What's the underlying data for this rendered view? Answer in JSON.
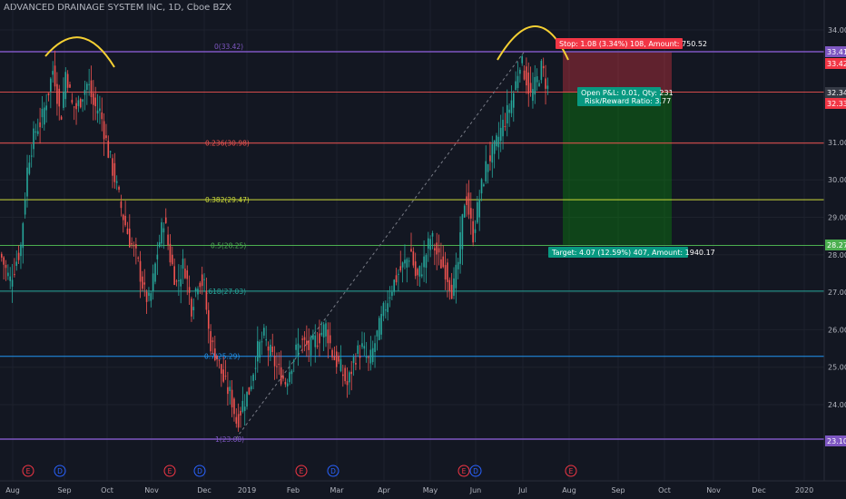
{
  "header": {
    "title": "ADVANCED DRAINAGE SYSTEM INC, 1D, Cboe BZX"
  },
  "colors": {
    "background": "#131722",
    "grid": "#1e222d",
    "text": "#b2b5be",
    "up": "#26a69a",
    "down": "#ef5350",
    "annotation": "#f5d033"
  },
  "chart_data": {
    "type": "candlestick",
    "title": "ADVANCED DRAINAGE SYSTEM INC, 1D, Cboe BZX",
    "ylim": [
      22.6,
      34.3
    ],
    "y_ticks": [
      "24.00",
      "25.00",
      "26.00",
      "27.00",
      "28.00",
      "29.00",
      "30.00",
      "31.00",
      "34.00"
    ],
    "x_ticks": [
      "Aug",
      "Sep",
      "Oct",
      "Nov",
      "Dec",
      "2019",
      "Feb",
      "Mar",
      "Apr",
      "May",
      "Jun",
      "Jul",
      "Aug",
      "Sep",
      "Oct",
      "Nov",
      "Dec",
      "2020"
    ],
    "price_path": [
      [
        0,
        28.0
      ],
      [
        10,
        27.3
      ],
      [
        22,
        28.2
      ],
      [
        30,
        30.5
      ],
      [
        38,
        31.3
      ],
      [
        45,
        31.6
      ],
      [
        52,
        32.3
      ],
      [
        58,
        33.0
      ],
      [
        62,
        32.3
      ],
      [
        66,
        31.6
      ],
      [
        72,
        33.0
      ],
      [
        78,
        32.0
      ],
      [
        84,
        31.9
      ],
      [
        90,
        32.3
      ],
      [
        96,
        32.6
      ],
      [
        102,
        32.0
      ],
      [
        110,
        31.8
      ],
      [
        118,
        30.8
      ],
      [
        126,
        30.0
      ],
      [
        134,
        29.1
      ],
      [
        142,
        28.4
      ],
      [
        150,
        27.9
      ],
      [
        158,
        27.0
      ],
      [
        164,
        26.7
      ],
      [
        172,
        28.0
      ],
      [
        180,
        29.0
      ],
      [
        186,
        28.0
      ],
      [
        194,
        27.2
      ],
      [
        202,
        27.8
      ],
      [
        210,
        26.6
      ],
      [
        218,
        27.4
      ],
      [
        224,
        27.2
      ],
      [
        230,
        25.7
      ],
      [
        238,
        25.3
      ],
      [
        246,
        24.6
      ],
      [
        254,
        24.2
      ],
      [
        260,
        23.5
      ],
      [
        266,
        24.0
      ],
      [
        274,
        24.4
      ],
      [
        282,
        25.4
      ],
      [
        290,
        25.8
      ],
      [
        298,
        25.3
      ],
      [
        306,
        24.9
      ],
      [
        314,
        24.6
      ],
      [
        320,
        25.1
      ],
      [
        330,
        25.7
      ],
      [
        340,
        25.5
      ],
      [
        350,
        25.8
      ],
      [
        358,
        26.1
      ],
      [
        366,
        25.3
      ],
      [
        374,
        25.0
      ],
      [
        382,
        24.5
      ],
      [
        390,
        25.3
      ],
      [
        398,
        25.5
      ],
      [
        406,
        25.1
      ],
      [
        414,
        25.8
      ],
      [
        422,
        26.5
      ],
      [
        430,
        27.1
      ],
      [
        438,
        27.5
      ],
      [
        446,
        27.8
      ],
      [
        452,
        28.1
      ],
      [
        458,
        27.3
      ],
      [
        466,
        27.8
      ],
      [
        474,
        28.5
      ],
      [
        482,
        27.9
      ],
      [
        490,
        27.6
      ],
      [
        498,
        27.0
      ],
      [
        504,
        27.8
      ],
      [
        512,
        29.7
      ],
      [
        520,
        28.5
      ],
      [
        528,
        29.6
      ],
      [
        536,
        30.5
      ],
      [
        544,
        30.8
      ],
      [
        552,
        31.4
      ],
      [
        560,
        31.9
      ],
      [
        566,
        32.4
      ],
      [
        572,
        33.2
      ],
      [
        578,
        32.8
      ],
      [
        584,
        32.2
      ],
      [
        590,
        32.6
      ],
      [
        596,
        33.0
      ],
      [
        604,
        32.3
      ]
    ],
    "fibonacci": [
      {
        "label": "0(33.42)",
        "value": 33.42,
        "color": "#7e57c2"
      },
      {
        "label": "0.236(30.98)",
        "value": 30.98,
        "color": "#ef5350"
      },
      {
        "label": "0.382(29.47)",
        "value": 29.47,
        "color": "#cddc39"
      },
      {
        "label": "0.5(28.25)",
        "value": 28.25,
        "color": "#4caf50"
      },
      {
        "label": "0.618(27.03)",
        "value": 27.03,
        "color": "#26a69a"
      },
      {
        "label": "0.786(25.29)",
        "value": 25.29,
        "color": "#2196f3"
      },
      {
        "label": "1(23.08)",
        "value": 23.08,
        "color": "#7e57c2"
      }
    ],
    "fib_labels_shown": [
      "0(33.42)",
      "0.236(30.98)",
      "0.382(29.47)",
      "0.5(28.25)",
      ".618(27.03)",
      "0.7",
      "(25.29)",
      "1(23.08)"
    ],
    "position": {
      "entry": 32.34,
      "stop": 33.42,
      "target": 28.27,
      "stop_label": "Stop: 1.08 (3.34%) 108, Amount: 750.52",
      "target_label": "Target: 4.07 (12.59%) 407, Amount: 1940.17",
      "pnl_label": "Open P&L: 0.01, Qty: 231",
      "rr_label": "Risk/Reward Ratio: 3.77"
    },
    "price_tags": [
      {
        "text": "33.41",
        "value": 33.41,
        "color": "#7e57c2"
      },
      {
        "text": "33.42",
        "value": 33.42,
        "color": "#f23645"
      },
      {
        "text": "32.34",
        "value": 32.34,
        "color": "#363a45"
      },
      {
        "text": "32.33",
        "value": 32.33,
        "color": "#f23645"
      },
      {
        "text": "28.27",
        "value": 28.27,
        "color": "#4caf50"
      },
      {
        "text": "23.10",
        "value": 23.1,
        "color": "#7e57c2"
      }
    ],
    "events": [
      {
        "type": "E",
        "color": "#f23645"
      },
      {
        "type": "D",
        "color": "#2962ff"
      },
      {
        "type": "E",
        "color": "#f23645"
      },
      {
        "type": "D",
        "color": "#2962ff"
      },
      {
        "type": "E",
        "color": "#f23645"
      },
      {
        "type": "D",
        "color": "#2962ff"
      },
      {
        "type": "E",
        "color": "#f23645"
      },
      {
        "type": "D",
        "color": "#2962ff"
      },
      {
        "type": "E",
        "color": "#f23645"
      }
    ]
  }
}
